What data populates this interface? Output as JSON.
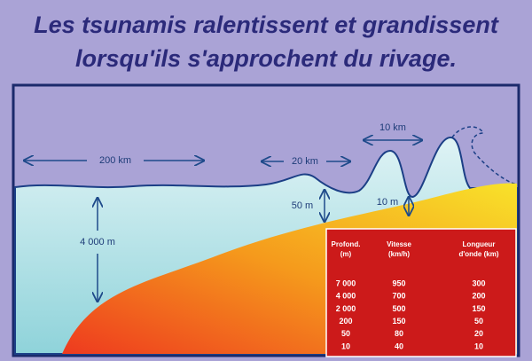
{
  "title": {
    "lines": [
      "Les tsunamis ralentissent et grandissent",
      "lorsqu'ils s'approchent du rivage."
    ]
  },
  "labels": {
    "width_open_ocean": "200 km",
    "width_shelf": "20 km",
    "width_coast": "10 km",
    "depth_open_ocean": "4 000 m",
    "depth_shelf": "50 m",
    "depth_coast": "10 m"
  },
  "table": {
    "headers": [
      [
        "Profond.",
        "(m)"
      ],
      [
        "Vitesse",
        "(km/h)"
      ],
      [
        "Longueur",
        "d'onde (km)"
      ]
    ],
    "rows": [
      [
        "7 000",
        "950",
        "300"
      ],
      [
        "4 000",
        "700",
        "200"
      ],
      [
        "2 000",
        "500",
        "150"
      ],
      [
        "200",
        "150",
        "50"
      ],
      [
        "50",
        "80",
        "20"
      ],
      [
        "10",
        "40",
        "10"
      ]
    ]
  }
}
